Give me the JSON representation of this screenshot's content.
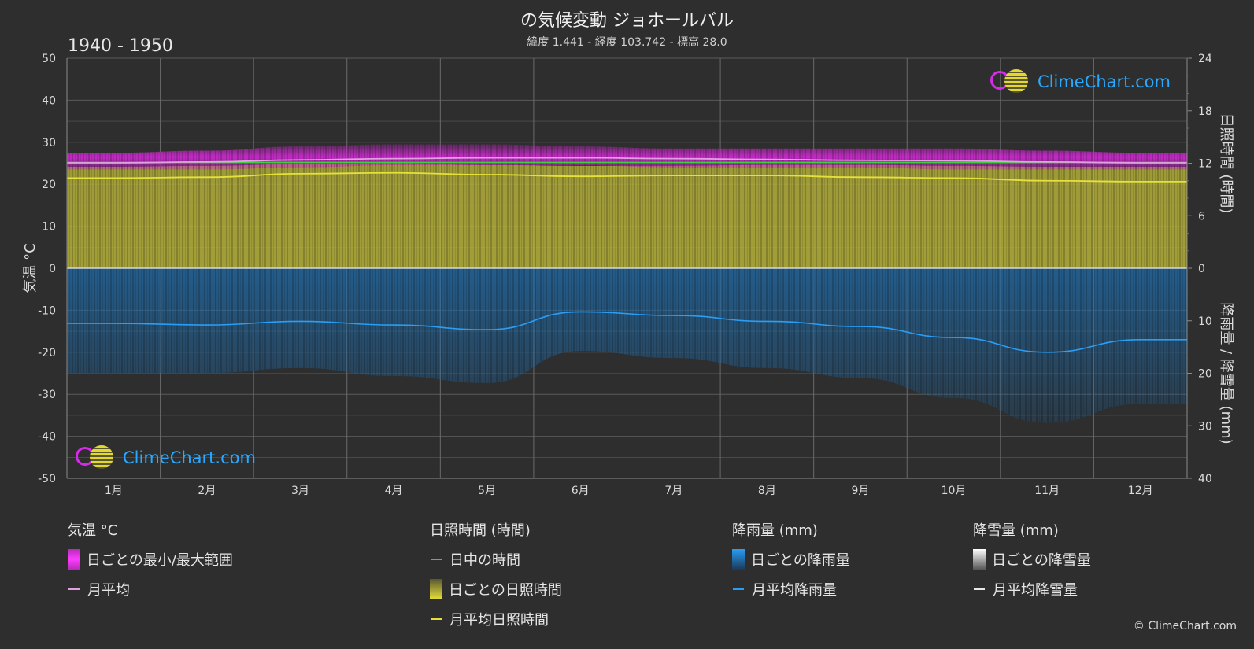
{
  "header": {
    "title": "の気候変動 ジョホールバル",
    "subtitle": "緯度 1.441 - 経度 103.742 - 標高 28.0",
    "period": "1940 - 1950"
  },
  "axes": {
    "left_label": "気温 °C",
    "right_top_label": "日照時間 (時間)",
    "right_bottom_label": "降雨量 / 降雪量 (mm)"
  },
  "brand": {
    "name": "ClimeChart.com",
    "copyright": "© ClimeChart.com"
  },
  "colors": {
    "background": "#2e2e2e",
    "temp_range": "#d62ad9",
    "temp_mean": "#e0a0e0",
    "sunshine": "#c8c43a",
    "sunshine_mean": "#e6e13a",
    "daylight": "#3ccf3c",
    "rain": "#1f6fb0",
    "rain_mean": "#2a9df4",
    "snow": "#e8e8e8",
    "logo": "#2aa9ff"
  },
  "legend": {
    "temperature": {
      "title": "気温 °C",
      "items": [
        {
          "label": "日ごとの最小/最大範囲",
          "swatch": "box",
          "color": "#d62ad9"
        },
        {
          "label": "月平均",
          "swatch": "line",
          "color": "#e0a0e0"
        }
      ]
    },
    "sunshine": {
      "title": "日照時間 (時間)",
      "items": [
        {
          "label": "日中の時間",
          "swatch": "line",
          "color": "#3ccf3c"
        },
        {
          "label": "日ごとの日照時間",
          "swatch": "box",
          "color": "#c8c43a"
        },
        {
          "label": "月平均日照時間",
          "swatch": "line",
          "color": "#e6e13a"
        }
      ]
    },
    "rain": {
      "title": "降雨量 (mm)",
      "items": [
        {
          "label": "日ごとの降雨量",
          "swatch": "box",
          "color": "#1f6fb0"
        },
        {
          "label": "月平均降雨量",
          "swatch": "line",
          "color": "#2a9df4"
        }
      ]
    },
    "snow": {
      "title": "降雪量 (mm)",
      "items": [
        {
          "label": "日ごとの降雪量",
          "swatch": "box",
          "color": "#e8e8e8"
        },
        {
          "label": "月平均降雪量",
          "swatch": "line",
          "color": "#e8e8e8"
        }
      ]
    }
  },
  "chart_data": {
    "type": "area",
    "categories": [
      "1月",
      "2月",
      "3月",
      "4月",
      "5月",
      "6月",
      "7月",
      "8月",
      "9月",
      "10月",
      "11月",
      "12月"
    ],
    "y_left": {
      "label": "気温 °C",
      "range": [
        -50,
        50
      ],
      "ticks": [
        50,
        40,
        30,
        20,
        10,
        0,
        -10,
        -20,
        -30,
        -40,
        -50
      ]
    },
    "y_right_top": {
      "label": "日照時間 (時間)",
      "range": [
        0,
        24
      ],
      "ticks": [
        24,
        18,
        12,
        6,
        0
      ]
    },
    "y_right_bottom": {
      "label": "降雨量 / 降雪量 (mm)",
      "range": [
        0,
        40
      ],
      "ticks": [
        10,
        20,
        30,
        40
      ]
    },
    "grid": true,
    "series": [
      {
        "name": "日ごとの最小/最大範囲",
        "kind": "band",
        "axis": "left",
        "min": [
          23.5,
          23.5,
          24,
          24.5,
          24.5,
          24.5,
          24,
          24,
          24,
          23.5,
          23.5,
          23.5
        ],
        "max": [
          27.5,
          28,
          29,
          29.5,
          29.5,
          29,
          28.5,
          28.5,
          28.5,
          28.5,
          28,
          27.5
        ]
      },
      {
        "name": "月平均",
        "kind": "line",
        "axis": "left",
        "values": [
          25.1,
          25.3,
          25.8,
          26.1,
          26.3,
          26.3,
          26.1,
          25.9,
          25.7,
          25.6,
          25.3,
          25.1
        ]
      },
      {
        "name": "日中の時間",
        "kind": "line",
        "axis": "right_top",
        "values": [
          12.1,
          12.1,
          12.1,
          12.1,
          12.1,
          12.1,
          12.1,
          12.1,
          12.1,
          12.1,
          12.1,
          12.1
        ]
      },
      {
        "name": "日ごとの日照時間",
        "kind": "area",
        "axis": "right_top",
        "values": [
          11.6,
          11.7,
          11.9,
          12.0,
          11.8,
          11.7,
          11.7,
          11.8,
          11.8,
          11.7,
          11.6,
          11.6
        ]
      },
      {
        "name": "月平均日照時間",
        "kind": "line",
        "axis": "right_top",
        "values": [
          10.3,
          10.4,
          10.8,
          10.9,
          10.7,
          10.5,
          10.6,
          10.6,
          10.4,
          10.3,
          10.0,
          9.9
        ]
      },
      {
        "name": "日ごとの降雨量",
        "kind": "area",
        "axis": "right_bottom",
        "values": [
          10.5,
          10.5,
          10.0,
          10.8,
          11.5,
          8.3,
          9.0,
          10.0,
          11.0,
          13.0,
          15.5,
          13.6
        ]
      },
      {
        "name": "月平均降雨量",
        "kind": "line",
        "axis": "right_bottom",
        "values": [
          10.5,
          10.8,
          10.1,
          10.8,
          11.7,
          8.3,
          9.0,
          10.1,
          11.1,
          13.2,
          16.0,
          13.6
        ]
      },
      {
        "name": "月平均降雪量",
        "kind": "line",
        "axis": "right_bottom",
        "values": [
          0,
          0,
          0,
          0,
          0,
          0,
          0,
          0,
          0,
          0,
          0,
          0
        ]
      }
    ]
  }
}
